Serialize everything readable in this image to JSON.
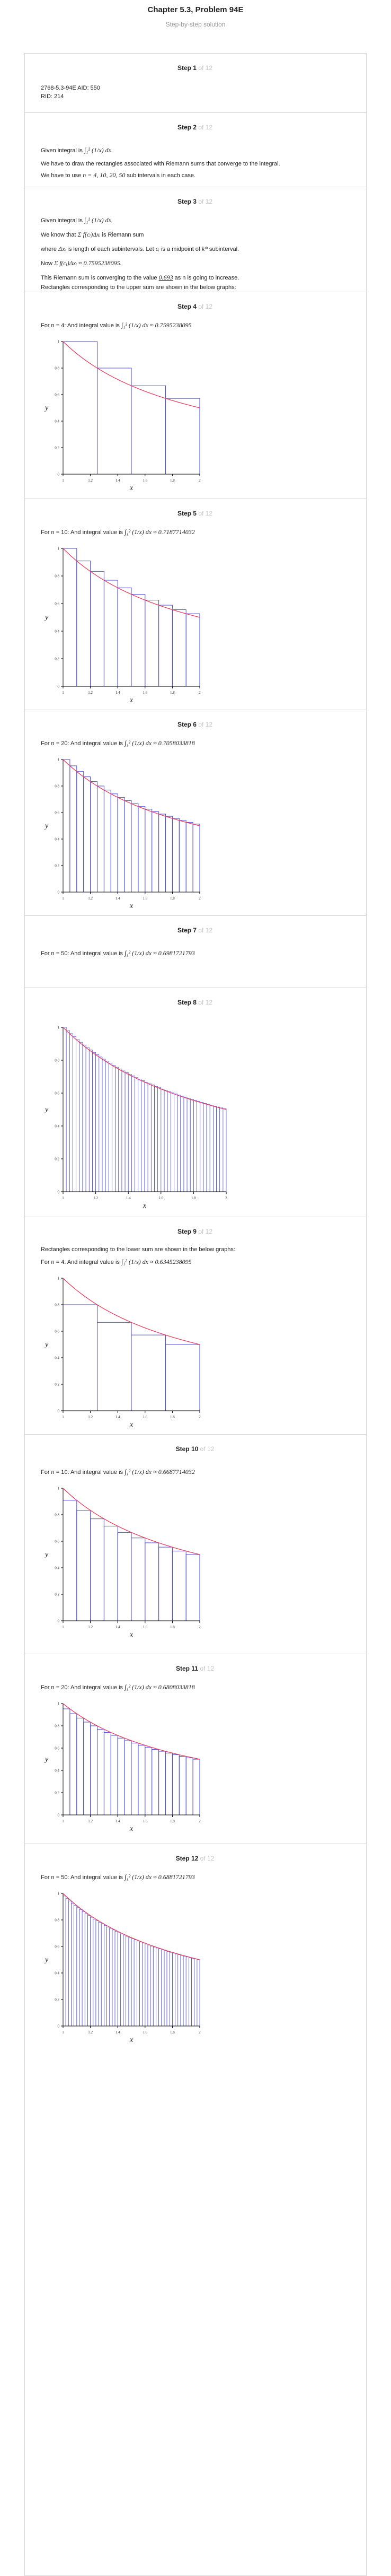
{
  "header": {
    "title": "Chapter 5.3, Problem 94E",
    "subtitle": "Step-by-step solution"
  },
  "colors": {
    "rect": "#4a4ad8",
    "curve": "#e83c5f",
    "border": "#d4d4d4",
    "muted": "#c5c5c5"
  },
  "steps": [
    {
      "label": "Step 1",
      "of": "of 12",
      "lines": [
        "2768-5.3-94E AID: 550",
        "RID: 214"
      ]
    },
    {
      "label": "Step 2",
      "of": "of 12",
      "given": "Given integral is",
      "given_math": "∫₁² (1/x) dx.",
      "line2": "We have to draw the rectangles associated with Riemann sums that converge to the integral.",
      "line3a": "We have to use",
      "line3_math": "n = 4, 10, 20, 50",
      "line3b": "sub intervals in each case."
    },
    {
      "label": "Step 3",
      "of": "of 12",
      "given": "Given integral is",
      "given_math": "∫₁² (1/x) dx.",
      "know_a": "We know that",
      "know_math": "Σ f(cᵢ)Δxᵢ",
      "know_b": "is Riemann sum",
      "where_a": "where",
      "where_m1": "Δxᵢ",
      "where_b": "is length of each subintervals. Let",
      "where_m2": "cᵢ",
      "where_c": "is a midpoint of",
      "where_m3": "kᵗʰ",
      "where_d": "subinterval.",
      "now": "Now",
      "now_math": "Σ f(cᵢ)Δxᵢ ≈ 0.7595238095.",
      "conv_a": "This Riemann sum is converging to the value",
      "conv_math": "0.693",
      "conv_b": "as n is going to increase.",
      "rect_line": "Rectangles corresponding to the upper sum are shown in the below graphs:"
    },
    {
      "label": "Step 4",
      "of": "of 12",
      "pre": "For n = 4: And integral value is",
      "math": "∫₁² (1/x) dx ≈ 0.7595238095",
      "plot": 0
    },
    {
      "label": "Step 5",
      "of": "of 12",
      "pre": "For n = 10: And integral value is",
      "math": "∫₁² (1/x) dx ≈ 0.7187714032",
      "plot": 1
    },
    {
      "label": "Step 6",
      "of": "of 12",
      "pre": "For n = 20: And integral value is",
      "math": "∫₁² (1/x) dx ≈ 0.7058033818",
      "plot": 2
    },
    {
      "label": "Step 7",
      "of": "of 12",
      "pre": "For n = 50: And integral value is",
      "math": "∫₁² (1/x) dx ≈ 0.6981721793"
    },
    {
      "label": "Step 8",
      "of": "of 12",
      "plot": 3
    },
    {
      "label": "Step 9",
      "of": "of 12",
      "intro": "Rectangles corresponding to the lower sum are shown in the below graphs:",
      "pre": "For n = 4: And integral value is",
      "math": "∫₁² (1/x) dx ≈ 0.6345238095",
      "plot": 4
    },
    {
      "label": "Step 10",
      "of": "of 12",
      "pre": "For n = 10: And integral value is",
      "math": "∫₁² (1/x) dx ≈ 0.6687714032",
      "plot": 5
    },
    {
      "label": "Step 11",
      "of": "of 12",
      "pre": "For n = 20: And integral value is",
      "math": "∫₁² (1/x) dx ≈ 0.6808033818",
      "plot": 6
    },
    {
      "label": "Step 12",
      "of": "of 12",
      "pre": "For n = 50: And integral value is",
      "math": "∫₁² (1/x) dx ≈ 0.6881721793",
      "plot": 7
    }
  ],
  "chart_data": [
    {
      "type": "bar",
      "n": 4,
      "sum": "upper",
      "function": "1/x",
      "xlim": [
        1,
        2
      ],
      "ylim": [
        0,
        1
      ],
      "x_ticks": [
        "1",
        "1.2",
        "1.4",
        "1.6",
        "1.8",
        "2"
      ],
      "y_ticks": [
        "0",
        "0.2",
        "0.4",
        "0.6",
        "0.8",
        "1"
      ],
      "xlabel": "x",
      "ylabel": "y"
    },
    {
      "type": "bar",
      "n": 10,
      "sum": "upper",
      "function": "1/x",
      "xlim": [
        1,
        2
      ],
      "ylim": [
        0,
        1
      ],
      "x_ticks": [
        "1",
        "1.2",
        "1.4",
        "1.6",
        "1.8",
        "2"
      ],
      "y_ticks": [
        "0",
        "0.2",
        "0.4",
        "0.6",
        "0.8",
        "1"
      ],
      "xlabel": "x",
      "ylabel": "y"
    },
    {
      "type": "bar",
      "n": 20,
      "sum": "upper",
      "function": "1/x",
      "xlim": [
        1,
        2
      ],
      "ylim": [
        0,
        1
      ],
      "x_ticks": [
        "1",
        "1.2",
        "1.4",
        "1.6",
        "1.8",
        "2"
      ],
      "y_ticks": [
        "0",
        "0.2",
        "0.4",
        "0.6",
        "0.8",
        "1"
      ],
      "xlabel": "x",
      "ylabel": "y"
    },
    {
      "type": "bar",
      "n": 50,
      "sum": "upper",
      "function": "1/x",
      "xlim": [
        1,
        2
      ],
      "ylim": [
        0,
        1
      ],
      "x_ticks": [
        "1",
        "1.2",
        "1.4",
        "1.6",
        "1.8",
        "2"
      ],
      "y_ticks": [
        "0",
        "0.2",
        "0.4",
        "0.6",
        "0.8",
        "1"
      ],
      "xlabel": "x",
      "ylabel": "y"
    },
    {
      "type": "bar",
      "n": 4,
      "sum": "lower",
      "function": "1/x",
      "xlim": [
        1,
        2
      ],
      "ylim": [
        0,
        1
      ],
      "x_ticks": [
        "1",
        "1.2",
        "1.4",
        "1.6",
        "1.8",
        "2"
      ],
      "y_ticks": [
        "0",
        "0.2",
        "0.4",
        "0.6",
        "0.8",
        "1"
      ],
      "xlabel": "x",
      "ylabel": "y"
    },
    {
      "type": "bar",
      "n": 10,
      "sum": "lower",
      "function": "1/x",
      "xlim": [
        1,
        2
      ],
      "ylim": [
        0,
        1
      ],
      "x_ticks": [
        "1",
        "1.2",
        "1.4",
        "1.6",
        "1.8",
        "2"
      ],
      "y_ticks": [
        "0",
        "0.2",
        "0.4",
        "0.6",
        "0.8",
        "1"
      ],
      "xlabel": "x",
      "ylabel": "y"
    },
    {
      "type": "bar",
      "n": 20,
      "sum": "lower",
      "function": "1/x",
      "xlim": [
        1,
        2
      ],
      "ylim": [
        0,
        1
      ],
      "x_ticks": [
        "1",
        "1.2",
        "1.4",
        "1.6",
        "1.8",
        "2"
      ],
      "y_ticks": [
        "0",
        "0.2",
        "0.4",
        "0.6",
        "0.8",
        "1"
      ],
      "xlabel": "x",
      "ylabel": "y"
    },
    {
      "type": "bar",
      "n": 50,
      "sum": "lower",
      "function": "1/x",
      "xlim": [
        1,
        2
      ],
      "ylim": [
        0,
        1
      ],
      "x_ticks": [
        "1",
        "1.2",
        "1.4",
        "1.6",
        "1.8",
        "2"
      ],
      "y_ticks": [
        "0",
        "0.2",
        "0.4",
        "0.6",
        "0.8",
        "1"
      ],
      "xlabel": "x",
      "ylabel": "y"
    }
  ]
}
